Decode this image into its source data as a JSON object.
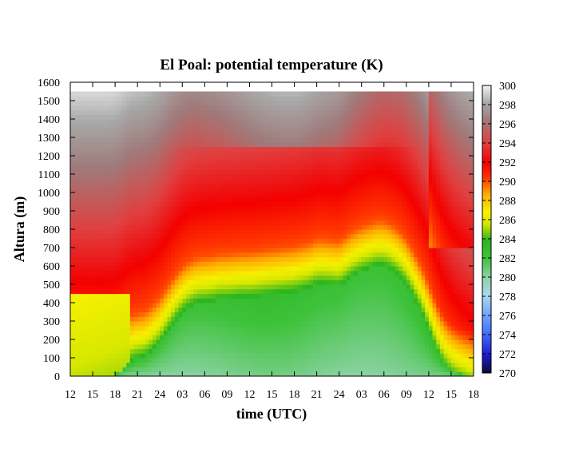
{
  "chart_data": {
    "type": "heatmap",
    "title": "El Poal: potential temperature (K)",
    "xlabel": "time (UTC)",
    "ylabel": "Altura (m)",
    "x_tick_labels": [
      "12",
      "15",
      "18",
      "21",
      "24",
      "03",
      "06",
      "09",
      "12",
      "15",
      "18",
      "21",
      "24",
      "03",
      "06",
      "09",
      "12",
      "15",
      "18"
    ],
    "x_range_hours": [
      0,
      54
    ],
    "ylim": [
      0,
      1600
    ],
    "y_ticks": [
      0,
      100,
      200,
      300,
      400,
      500,
      600,
      700,
      800,
      900,
      1000,
      1100,
      1200,
      1300,
      1400,
      1500,
      1600
    ],
    "data_top_m": 1550,
    "colorbar": {
      "min": 270,
      "max": 300,
      "ticks": [
        270,
        272,
        274,
        276,
        278,
        280,
        282,
        284,
        286,
        288,
        290,
        292,
        294,
        296,
        298,
        300
      ]
    },
    "boundary_layer_top_m": {
      "hours": [
        0,
        3,
        5,
        6,
        7,
        8,
        9,
        10,
        11,
        12,
        13,
        14,
        15,
        16,
        17,
        18,
        19,
        20,
        21,
        22,
        23,
        24,
        26,
        28,
        30,
        32,
        33,
        34,
        36,
        38,
        39,
        40,
        41,
        42,
        43,
        44,
        45,
        46,
        47,
        48,
        49,
        50,
        51,
        52,
        53,
        54
      ],
      "heights": [
        0,
        0,
        0,
        10,
        40,
        80,
        95,
        105,
        140,
        180,
        240,
        300,
        350,
        380,
        400,
        405,
        410,
        420,
        420,
        425,
        430,
        430,
        440,
        450,
        460,
        480,
        500,
        500,
        490,
        550,
        570,
        585,
        600,
        600,
        580,
        550,
        500,
        430,
        350,
        250,
        150,
        80,
        40,
        20,
        10,
        0
      ]
    }
  }
}
